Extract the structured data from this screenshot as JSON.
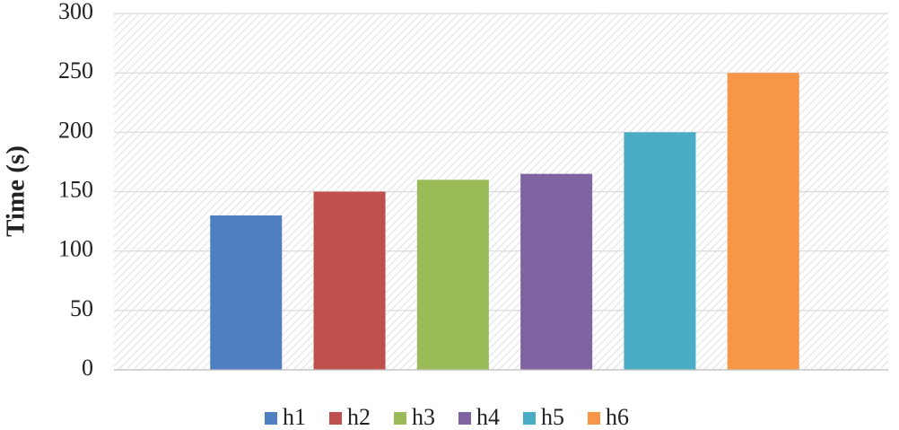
{
  "chart_data": {
    "type": "bar",
    "y_label": "Time (s)",
    "categories": [
      null
    ],
    "series": [
      {
        "name": "h1",
        "color": "#4f7fc0",
        "values": [
          130
        ]
      },
      {
        "name": "h2",
        "color": "#c0504d",
        "values": [
          150
        ]
      },
      {
        "name": "h3",
        "color": "#9bbb59",
        "values": [
          160
        ]
      },
      {
        "name": "h4",
        "color": "#8064a2",
        "values": [
          165
        ]
      },
      {
        "name": "h5",
        "color": "#4bacc6",
        "values": [
          200
        ]
      },
      {
        "name": "h6",
        "color": "#f79646",
        "values": [
          250
        ]
      }
    ],
    "ylim": [
      0,
      300
    ],
    "yticks": [
      0,
      50,
      100,
      150,
      200,
      250,
      300
    ],
    "grid": true,
    "legend": "bottom"
  }
}
